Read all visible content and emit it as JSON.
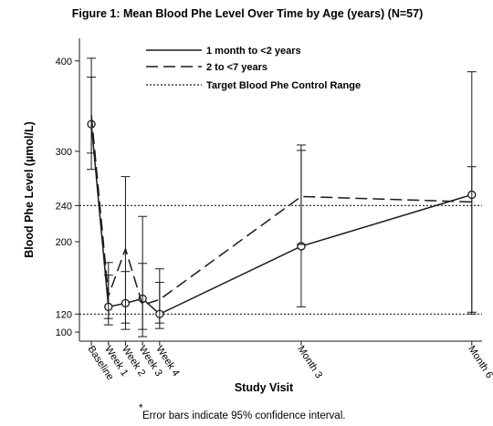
{
  "chart_data": {
    "type": "line",
    "title": "Figure 1: Mean Blood Phe Level Over Time by Age (years) (N=57)",
    "xlabel": "Study Visit",
    "ylabel": "Blood Phe Level (µmol/L)",
    "categories": [
      "Baseline",
      "Week 1",
      "Week 2",
      "Week 3",
      "Week 4",
      "Month 3",
      "Month 6"
    ],
    "category_positions": [
      0,
      1,
      2,
      3,
      4,
      12.3,
      22.3
    ],
    "xlim": [
      -0.7,
      22.9
    ],
    "ylim": [
      90,
      425
    ],
    "yticks": [
      100,
      120,
      200,
      240,
      300,
      400
    ],
    "reference_lines": [
      {
        "name": "Target Blood Phe Control Range",
        "values": [
          120,
          240
        ]
      }
    ],
    "series": [
      {
        "name": "1 month to <2 years",
        "style": "solid",
        "values": [
          330,
          128,
          132,
          137,
          120,
          195,
          252
        ],
        "ci_low": [
          280,
          108,
          103,
          103,
          104,
          128,
          120
        ],
        "ci_high": [
          382,
          163,
          167,
          176,
          155,
          307,
          388
        ]
      },
      {
        "name": "2  to <7 years",
        "style": "dashed",
        "values": [
          340,
          140,
          192,
          130,
          136,
          250,
          244
        ],
        "ci_low": [
          298,
          115,
          110,
          95,
          110,
          197,
          122
        ],
        "ci_high": [
          403,
          177,
          272,
          228,
          170,
          301,
          283
        ]
      }
    ],
    "legend_position": "top"
  },
  "footnote": "Error bars indicate 95% confidence interval.",
  "footnote_marker": "*"
}
